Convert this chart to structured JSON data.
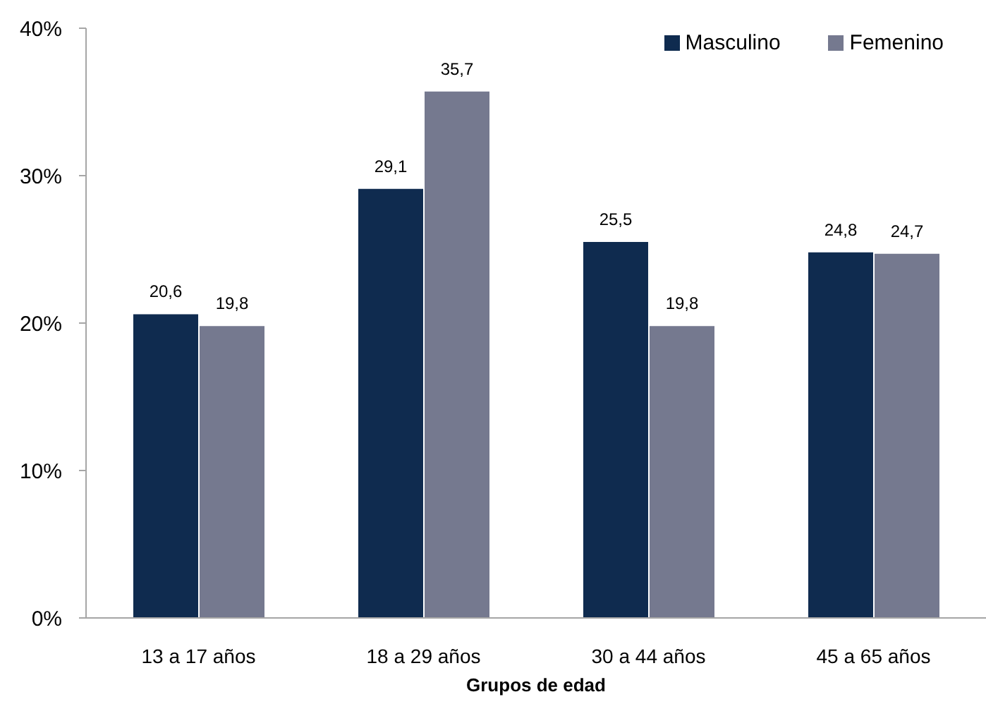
{
  "chart_data": {
    "type": "bar",
    "xlabel": "Grupos de edad",
    "categories": [
      "13 a 17 años",
      "18 a 29 años",
      "30 a 44 años",
      "45 a 65 años"
    ],
    "series": [
      {
        "name": "Masculino",
        "color": "#0f2b4f",
        "values": [
          20.6,
          29.1,
          25.5,
          24.8
        ],
        "value_labels": [
          "20,6",
          "29,1",
          "25,5",
          "24,8"
        ]
      },
      {
        "name": "Femenino",
        "color": "#75798f",
        "values": [
          19.8,
          35.7,
          19.8,
          24.7
        ],
        "value_labels": [
          "19,8",
          "35,7",
          "19,8",
          "24,7"
        ]
      }
    ],
    "ylim": [
      0,
      40
    ],
    "yticks": [
      {
        "value": 0,
        "label": "0%"
      },
      {
        "value": 10,
        "label": "10%"
      },
      {
        "value": 20,
        "label": "20%"
      },
      {
        "value": 30,
        "label": "30%"
      },
      {
        "value": 40,
        "label": "40%"
      }
    ],
    "legend": "top right"
  }
}
